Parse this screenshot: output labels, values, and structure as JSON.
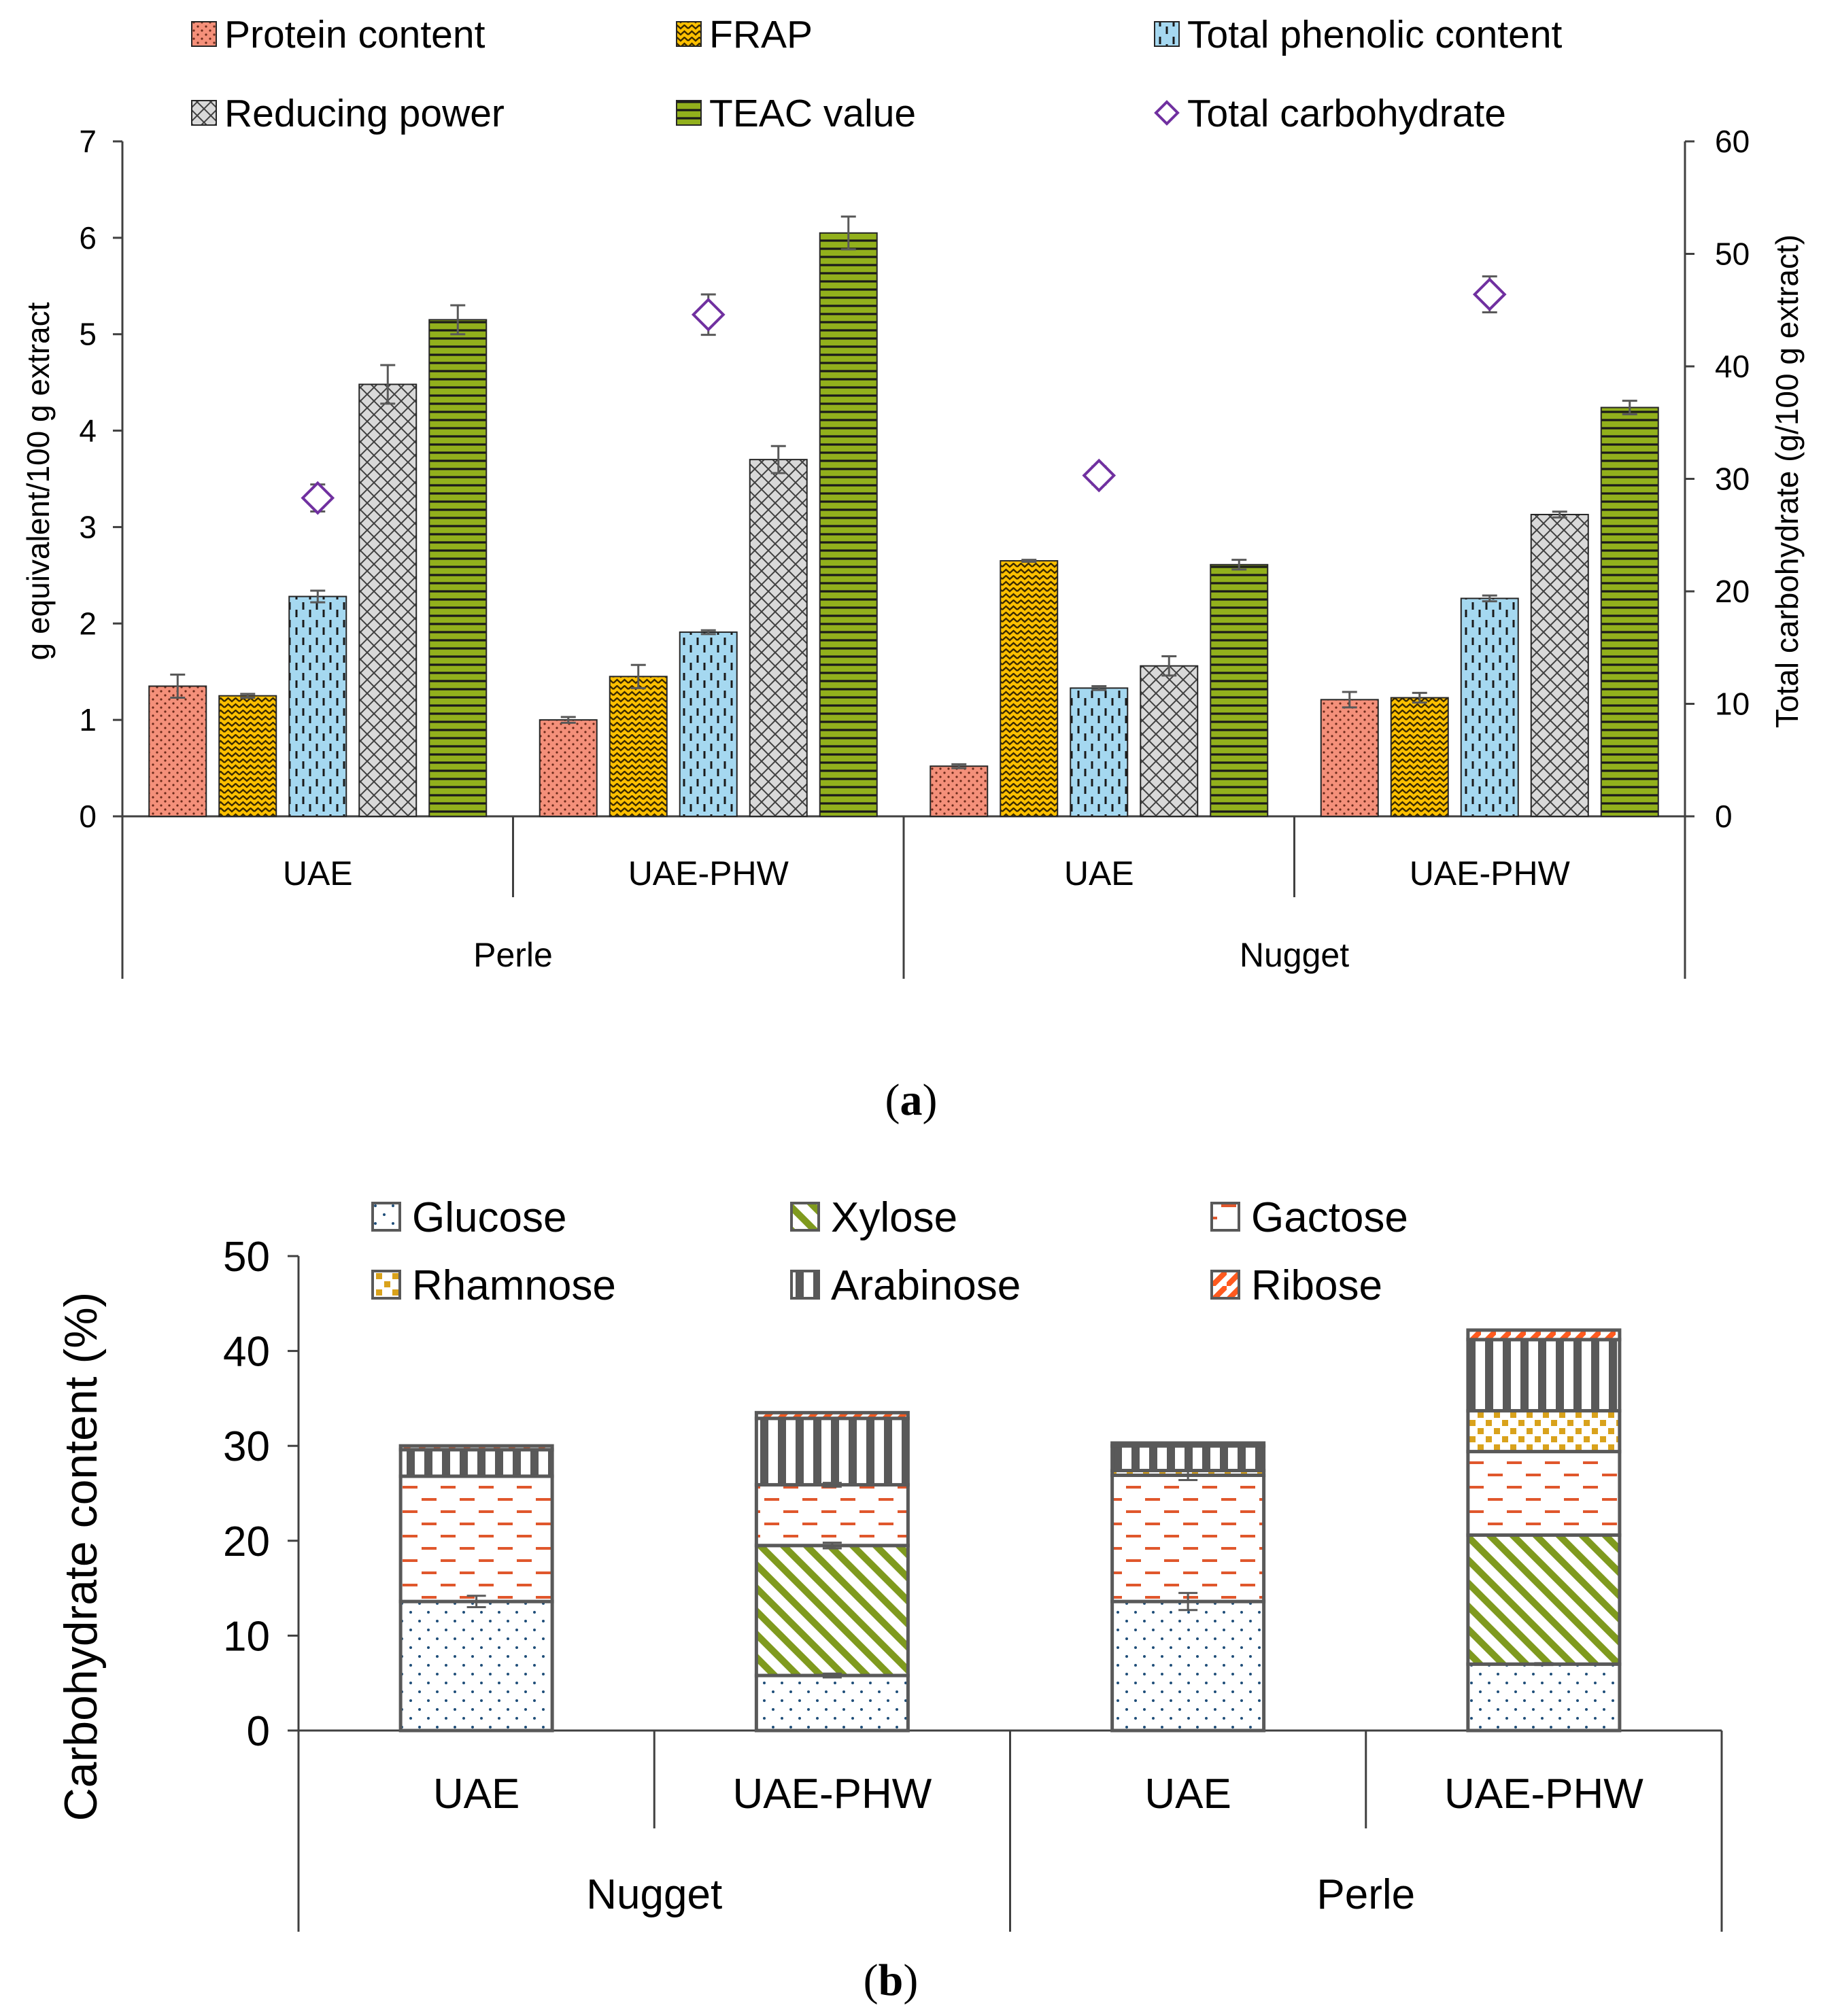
{
  "panel_labels": {
    "a_open": "(",
    "a": "a",
    "a_close": ")",
    "b_open": "(",
    "b": "b",
    "b_close": ")"
  },
  "colors": {
    "protein": "#f4907a",
    "frap": "#ffc000",
    "phenolic": "#a5d8f0",
    "reducing": "#d9d9d9",
    "teac": "#92b01c",
    "carb_marker": "#7030a0",
    "glucose_dot": "#1f4e79",
    "xylose": "#7f9a1e",
    "galactose": "#e0572c",
    "rhamnose": "#d9a21b",
    "arabinose": "#595959",
    "ribose": "#ff5a1f",
    "axis": "#404040",
    "error_bar": "#595959"
  },
  "chart_data": [
    {
      "id": "a",
      "type": "bar",
      "title": "",
      "ylabel": "g equivalent/100 g extract",
      "y2label": "Total carbohydrate (g/100 g extract)",
      "ylim": [
        0,
        7
      ],
      "y2lim": [
        0,
        60
      ],
      "yticks": [
        "0",
        "1",
        "2",
        "3",
        "4",
        "5",
        "6",
        "7"
      ],
      "y2ticks": [
        "0",
        "10",
        "20",
        "30",
        "40",
        "50",
        "60"
      ],
      "groups": [
        {
          "label": "Perle",
          "categories": [
            "UAE",
            "UAE-PHW"
          ]
        },
        {
          "label": "Nugget",
          "categories": [
            "UAE",
            "UAE-PHW"
          ]
        }
      ],
      "categories": [
        "UAE",
        "UAE-PHW",
        "UAE",
        "UAE-PHW"
      ],
      "series": [
        {
          "name": "Protein content",
          "key": "protein",
          "values": [
            1.35,
            1.0,
            0.52,
            1.21
          ],
          "errors": [
            0.12,
            0.03,
            0.02,
            0.08
          ]
        },
        {
          "name": "FRAP",
          "key": "frap",
          "values": [
            1.25,
            1.45,
            2.65,
            1.23
          ],
          "errors": [
            0.02,
            0.12,
            0.01,
            0.05
          ]
        },
        {
          "name": "Total phenolic content",
          "key": "phenolic",
          "values": [
            2.28,
            1.91,
            1.33,
            2.26
          ],
          "errors": [
            0.06,
            0.02,
            0.02,
            0.03
          ]
        },
        {
          "name": "Reducing power",
          "key": "reducing",
          "values": [
            4.48,
            3.7,
            1.56,
            3.13
          ],
          "errors": [
            0.2,
            0.14,
            0.1,
            0.03
          ]
        },
        {
          "name": "TEAC value",
          "key": "teac",
          "values": [
            5.15,
            6.05,
            2.61,
            4.24
          ],
          "errors": [
            0.15,
            0.17,
            0.05,
            0.07
          ]
        }
      ],
      "secondary_series": {
        "name": "Total carbohydrate",
        "key": "carb",
        "axis": "right",
        "values": [
          28.3,
          44.6,
          30.3,
          46.4
        ],
        "errors": [
          1.2,
          1.8,
          0.8,
          1.6
        ]
      },
      "legend": [
        "Protein content",
        "FRAP",
        "Total phenolic content",
        "Reducing power",
        "TEAC value",
        "Total carbohydrate"
      ],
      "legend_position": "top"
    },
    {
      "id": "b",
      "type": "bar",
      "stacked": true,
      "title": "",
      "ylabel": "Carbohydrate content (%)",
      "ylim": [
        0,
        50
      ],
      "yticks": [
        "0",
        "10",
        "20",
        "30",
        "40",
        "50"
      ],
      "groups": [
        {
          "label": "Nugget",
          "categories": [
            "UAE",
            "UAE-PHW"
          ]
        },
        {
          "label": "Perle",
          "categories": [
            "UAE",
            "UAE-PHW"
          ]
        }
      ],
      "categories": [
        "UAE",
        "UAE-PHW",
        "UAE",
        "UAE-PHW"
      ],
      "series": [
        {
          "name": "Glucose",
          "key": "glucose",
          "values": [
            13.6,
            5.8,
            13.6,
            7.0
          ],
          "errors": [
            0.6,
            0.2,
            0.9,
            0.1
          ]
        },
        {
          "name": "Xylose",
          "key": "xylose",
          "values": [
            0.0,
            13.7,
            0.0,
            13.6
          ],
          "errors": [
            0,
            0.3,
            0,
            0
          ]
        },
        {
          "name": "Gactose",
          "key": "galactose",
          "values": [
            13.2,
            6.4,
            13.3,
            8.8
          ],
          "errors": [
            0,
            0.2,
            0.5,
            0
          ]
        },
        {
          "name": "Rhamnose",
          "key": "rhamnose",
          "values": [
            0.0,
            0.0,
            0.5,
            4.3
          ],
          "errors": [
            0,
            0,
            0,
            0
          ]
        },
        {
          "name": "Arabinose",
          "key": "arabinose",
          "values": [
            2.8,
            7.0,
            2.6,
            7.5
          ],
          "errors": [
            0,
            0,
            0,
            0
          ]
        },
        {
          "name": "Ribose",
          "key": "ribose",
          "values": [
            0.4,
            0.6,
            0.3,
            1.0
          ],
          "errors": [
            0,
            0,
            0,
            0
          ]
        }
      ],
      "legend": [
        "Glucose",
        "Xylose",
        "Gactose",
        "Rhamnose",
        "Arabinose",
        "Ribose"
      ],
      "legend_position": "top"
    }
  ]
}
